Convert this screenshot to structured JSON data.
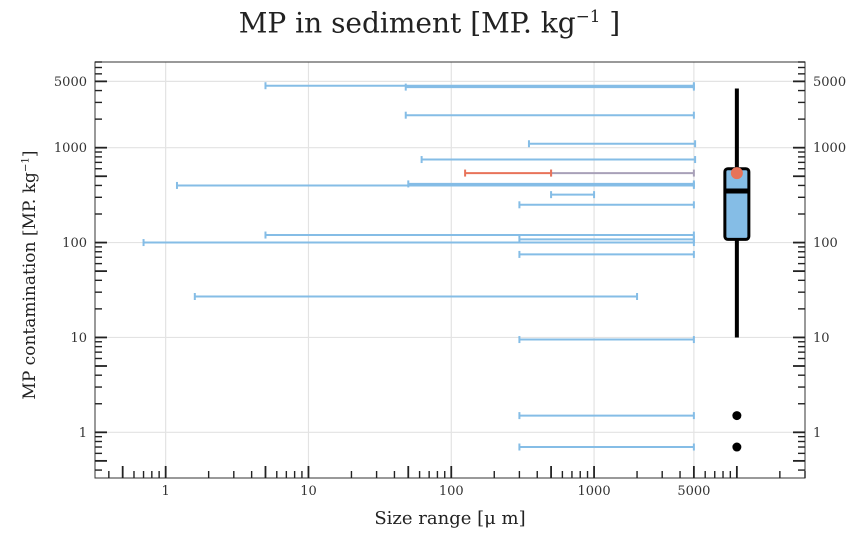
{
  "chart_data": {
    "type": "range-interval with boxplot",
    "title": "MP in sediment [MP. kg",
    "title_sup": "−1",
    "title_end": " ]",
    "xlabel": "Size range [μ m]",
    "ylabel": "MP contamination [MP. kg",
    "ylabel_sup": "−1",
    "ylabel_end": "]",
    "x_scale": "log10",
    "y_scale": "log10",
    "xlim": [
      0.32,
      30000
    ],
    "ylim": [
      0.33,
      8000
    ],
    "x_ticks": [
      1,
      10,
      100,
      1000,
      5000
    ],
    "x_tick_labels": [
      "1",
      "10",
      "100",
      "1000",
      "5000"
    ],
    "y_ticks": [
      1,
      10,
      100,
      1000,
      5000
    ],
    "y_tick_labels": [
      "1",
      "10",
      "100",
      "1000",
      "5000"
    ],
    "grid": true,
    "series": [
      {
        "color": "#85bde6",
        "intervals": [
          {
            "y": 4500,
            "x_min": 5,
            "x_max": 5000
          },
          {
            "y": 4350,
            "x_min": 48,
            "x_max": 5000
          },
          {
            "y": 2200,
            "x_min": 48,
            "x_max": 5000
          },
          {
            "y": 1100,
            "x_min": 350,
            "x_max": 5100
          },
          {
            "y": 750,
            "x_min": 62,
            "x_max": 5100
          },
          {
            "y": 400,
            "x_min": 1.2,
            "x_max": 5000
          },
          {
            "y": 415,
            "x_min": 50,
            "x_max": 5000
          },
          {
            "y": 320,
            "x_min": 500,
            "x_max": 1000
          },
          {
            "y": 250,
            "x_min": 300,
            "x_max": 5000
          },
          {
            "y": 120,
            "x_min": 5,
            "x_max": 5000
          },
          {
            "y": 108,
            "x_min": 300,
            "x_max": 5000
          },
          {
            "y": 100,
            "x_min": 0.7,
            "x_max": 5000
          },
          {
            "y": 75,
            "x_min": 300,
            "x_max": 5000
          },
          {
            "y": 27,
            "x_min": 1.6,
            "x_max": 2000
          },
          {
            "y": 9.5,
            "x_min": 300,
            "x_max": 5000
          },
          {
            "y": 1.5,
            "x_min": 300,
            "x_max": 5000
          },
          {
            "y": 0.7,
            "x_min": 300,
            "x_max": 5000
          }
        ]
      },
      {
        "color": "#a8a0b8",
        "intervals": [
          {
            "y": 540,
            "x_min": 500,
            "x_max": 5000
          }
        ]
      },
      {
        "color": "#e8735a",
        "intervals": [
          {
            "y": 540,
            "x_min": 125,
            "x_max": 500
          }
        ]
      }
    ],
    "boxplot": {
      "x": 10000,
      "whisker_low": 10,
      "q1": 108,
      "median": 350,
      "q3": 600,
      "whisker_high": 4200,
      "fill": "#85bde6",
      "outliers": [
        1.5,
        0.7
      ],
      "highlight": {
        "y": 540,
        "color": "#e8735a"
      }
    }
  }
}
